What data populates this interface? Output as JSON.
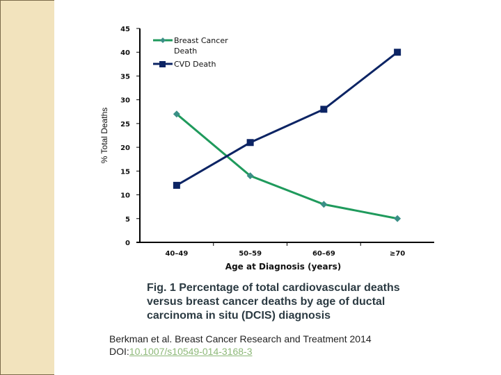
{
  "colors": {
    "breast_cancer": "#1f9a5c",
    "breast_cancer_marker": "#3a8f86",
    "cvd": "#0c2464",
    "side_band": "#f2e3bd",
    "caption_text": "#2b3a42",
    "doi_link": "#8db878"
  },
  "chart_data": {
    "type": "line",
    "title": "",
    "xlabel": "Age at Diagnosis (years)",
    "ylabel": "% Total Deaths",
    "categories": [
      "40–49",
      "50–59",
      "60–69",
      "≥70"
    ],
    "ylim": [
      0,
      45
    ],
    "yticks": [
      0,
      5,
      10,
      15,
      20,
      25,
      30,
      35,
      40,
      45
    ],
    "grid": false,
    "legend_position": "top-left",
    "series": [
      {
        "name": "Breast Cancer Death",
        "legend_lines": [
          "Breast Cancer",
          "Death"
        ],
        "marker": "diamond",
        "values": [
          27,
          14,
          8,
          5
        ]
      },
      {
        "name": "CVD Death",
        "legend_lines": [
          "CVD Death"
        ],
        "marker": "square",
        "values": [
          12,
          21,
          28,
          40
        ]
      }
    ]
  },
  "caption": {
    "text": "Fig. 1 Percentage of total cardiovascular deaths versus breast cancer deaths by age of ductal carcinoma in situ (DCIS) diagnosis"
  },
  "citation": {
    "line1": "Berkman et al. Breast Cancer Research and Treatment 2014",
    "doi_prefix": "DOI:",
    "doi_value": "10.1007/s10549-014-3168-3"
  }
}
